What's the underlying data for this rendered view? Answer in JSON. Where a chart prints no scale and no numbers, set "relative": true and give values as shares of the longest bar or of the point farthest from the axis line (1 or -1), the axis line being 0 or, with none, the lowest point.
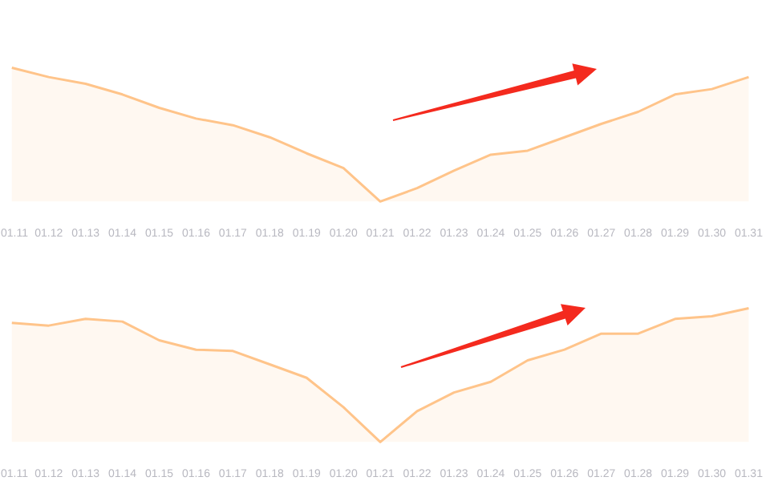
{
  "chart_data": [
    {
      "type": "area",
      "relative": true,
      "categories": [
        "01.11",
        "01.12",
        "01.13",
        "01.14",
        "01.15",
        "01.16",
        "01.17",
        "01.18",
        "01.19",
        "01.20",
        "01.21",
        "01.22",
        "01.23",
        "01.24",
        "01.25",
        "01.26",
        "01.27",
        "01.28",
        "01.29",
        "01.30",
        "01.31"
      ],
      "series": [
        {
          "color": "#ffc48a",
          "values": [
            1,
            0.93,
            0.88,
            0.8,
            0.7,
            0.62,
            0.57,
            0.48,
            0.36,
            0.25,
            0,
            0.1,
            0.23,
            0.35,
            0.38,
            0.48,
            0.58,
            0.67,
            0.8,
            0.84,
            0.93
          ]
        }
      ]
    },
    {
      "type": "area",
      "relative": true,
      "categories": [
        "01.11",
        "01.12",
        "01.13",
        "01.14",
        "01.15",
        "01.16",
        "01.17",
        "01.18",
        "01.19",
        "01.20",
        "01.21",
        "01.22",
        "01.23",
        "01.24",
        "01.25",
        "01.26",
        "01.27",
        "01.28",
        "01.29",
        "01.30",
        "01.31"
      ],
      "series": [
        {
          "color": "#ffc48a",
          "values": [
            0.89,
            0.87,
            0.92,
            0.9,
            0.76,
            0.69,
            0.68,
            0.58,
            0.48,
            0.26,
            0,
            0.23,
            0.37,
            0.45,
            0.61,
            0.69,
            0.81,
            0.81,
            0.92,
            0.94,
            1
          ]
        }
      ]
    }
  ]
}
